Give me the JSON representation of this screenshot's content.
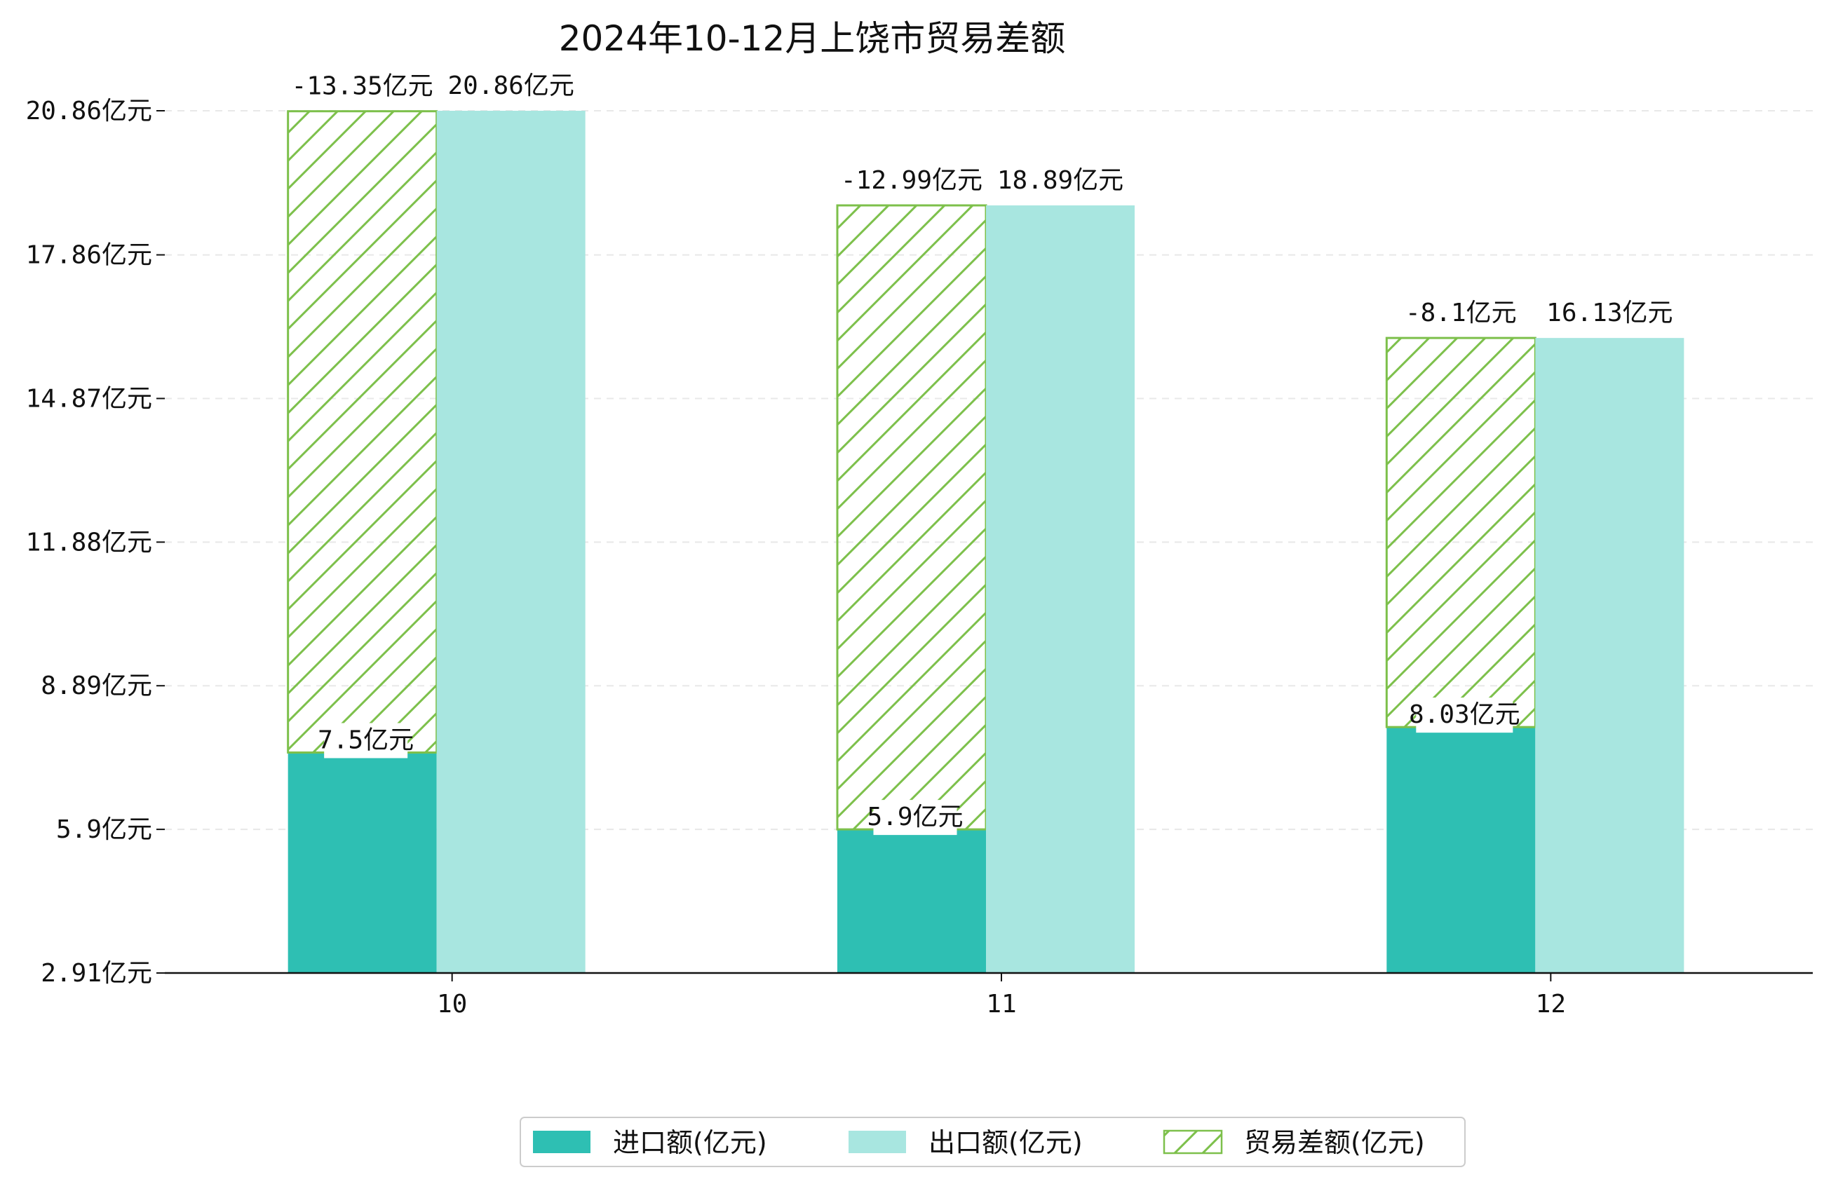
{
  "chart_data": {
    "type": "bar",
    "title": "2024年10-12月上饶市贸易差额",
    "categories": [
      "10",
      "11",
      "12"
    ],
    "series": [
      {
        "name": "进口额(亿元)",
        "values": [
          7.5,
          5.9,
          8.03
        ],
        "color": "#2ebfb3"
      },
      {
        "name": "出口额(亿元)",
        "values": [
          20.86,
          18.89,
          16.13
        ],
        "color": "#a8e6e0"
      },
      {
        "name": "贸易差额(亿元)",
        "values": [
          -13.35,
          -12.99,
          -8.1
        ],
        "color": "#7dc04b",
        "pattern": "hatch"
      }
    ],
    "data_labels": {
      "import": [
        "7.5亿元",
        "5.9亿元",
        "8.03亿元"
      ],
      "export": [
        "20.86亿元",
        "18.89亿元",
        "16.13亿元"
      ],
      "balance": [
        "-13.35亿元",
        "-12.99亿元",
        "-8.1亿元"
      ]
    },
    "yticks": [
      "2.91亿元",
      "5.9亿元",
      "8.89亿元",
      "11.88亿元",
      "14.87亿元",
      "17.86亿元",
      "20.86亿元"
    ],
    "ytick_values": [
      2.91,
      5.9,
      8.89,
      11.88,
      14.87,
      17.86,
      20.86
    ],
    "ylim": [
      2.91,
      20.86
    ],
    "grid": true,
    "legend": {
      "position": "bottom-center",
      "items": [
        "进口额(亿元)",
        "出口额(亿元)",
        "贸易差额(亿元)"
      ]
    }
  }
}
